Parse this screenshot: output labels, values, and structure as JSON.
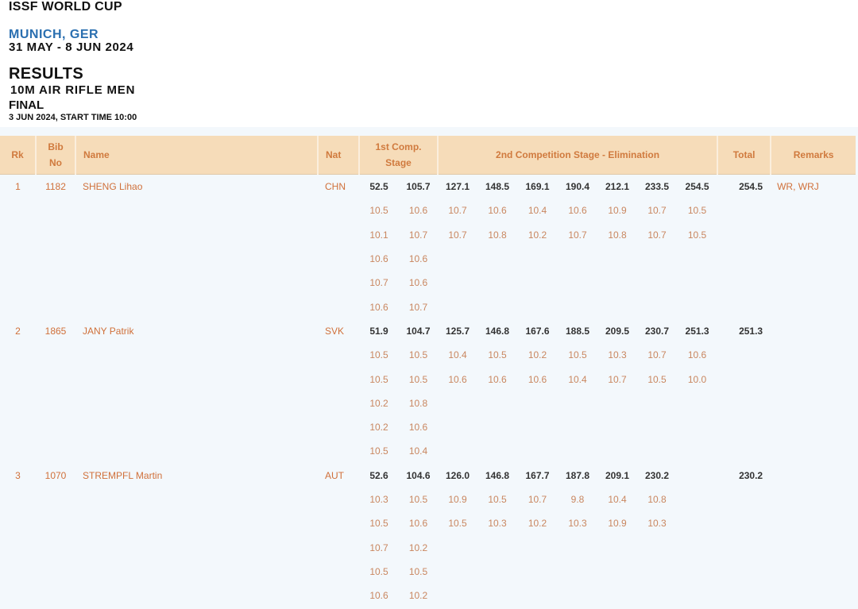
{
  "header": {
    "event": "ISSF WORLD CUP",
    "city": "MUNICH, GER",
    "dates": "31 MAY - 8 JUN 2024",
    "results": "RESULTS",
    "discipline": "10M AIR RIFLE MEN",
    "phase": "FINAL",
    "start": "3 JUN 2024, START TIME 10:00"
  },
  "table": {
    "columns": {
      "rk": "Rk",
      "bib_1": "Bib",
      "bib_2": "No",
      "name": "Name",
      "nat": "Nat",
      "stage1_1": "1st Comp.",
      "stage1_2": "Stage",
      "stage2": "2nd Competition Stage - Elimination",
      "total": "Total",
      "remarks": "Remarks"
    },
    "athletes": [
      {
        "rk": "1",
        "bib": "1182",
        "name": "SHENG Lihao",
        "nat": "CHN",
        "series": [
          "52.5",
          "105.7",
          "127.1",
          "148.5",
          "169.1",
          "190.4",
          "212.1",
          "233.5",
          "254.5"
        ],
        "total": "254.5",
        "remarks": "WR, WRJ",
        "shots": [
          [
            "10.5",
            "10.6",
            "10.7",
            "10.6",
            "10.4",
            "10.6",
            "10.9",
            "10.7",
            "10.5"
          ],
          [
            "10.1",
            "10.7",
            "10.7",
            "10.8",
            "10.2",
            "10.7",
            "10.8",
            "10.7",
            "10.5"
          ],
          [
            "10.6",
            "10.6"
          ],
          [
            "10.7",
            "10.6"
          ],
          [
            "10.6",
            "10.7"
          ]
        ]
      },
      {
        "rk": "2",
        "bib": "1865",
        "name": "JANY Patrik",
        "nat": "SVK",
        "series": [
          "51.9",
          "104.7",
          "125.7",
          "146.8",
          "167.6",
          "188.5",
          "209.5",
          "230.7",
          "251.3"
        ],
        "total": "251.3",
        "remarks": "",
        "shots": [
          [
            "10.5",
            "10.5",
            "10.4",
            "10.5",
            "10.2",
            "10.5",
            "10.3",
            "10.7",
            "10.6"
          ],
          [
            "10.5",
            "10.5",
            "10.6",
            "10.6",
            "10.6",
            "10.4",
            "10.7",
            "10.5",
            "10.0"
          ],
          [
            "10.2",
            "10.8"
          ],
          [
            "10.2",
            "10.6"
          ],
          [
            "10.5",
            "10.4"
          ]
        ]
      },
      {
        "rk": "3",
        "bib": "1070",
        "name": "STREMPFL Martin",
        "nat": "AUT",
        "series": [
          "52.6",
          "104.6",
          "126.0",
          "146.8",
          "167.7",
          "187.8",
          "209.1",
          "230.2"
        ],
        "total": "230.2",
        "remarks": "",
        "shots": [
          [
            "10.3",
            "10.5",
            "10.9",
            "10.5",
            "10.7",
            "9.8",
            "10.4",
            "10.8"
          ],
          [
            "10.5",
            "10.6",
            "10.5",
            "10.3",
            "10.2",
            "10.3",
            "10.9",
            "10.3"
          ],
          [
            "10.7",
            "10.2"
          ],
          [
            "10.5",
            "10.5"
          ],
          [
            "10.6",
            "10.2"
          ]
        ]
      }
    ]
  }
}
